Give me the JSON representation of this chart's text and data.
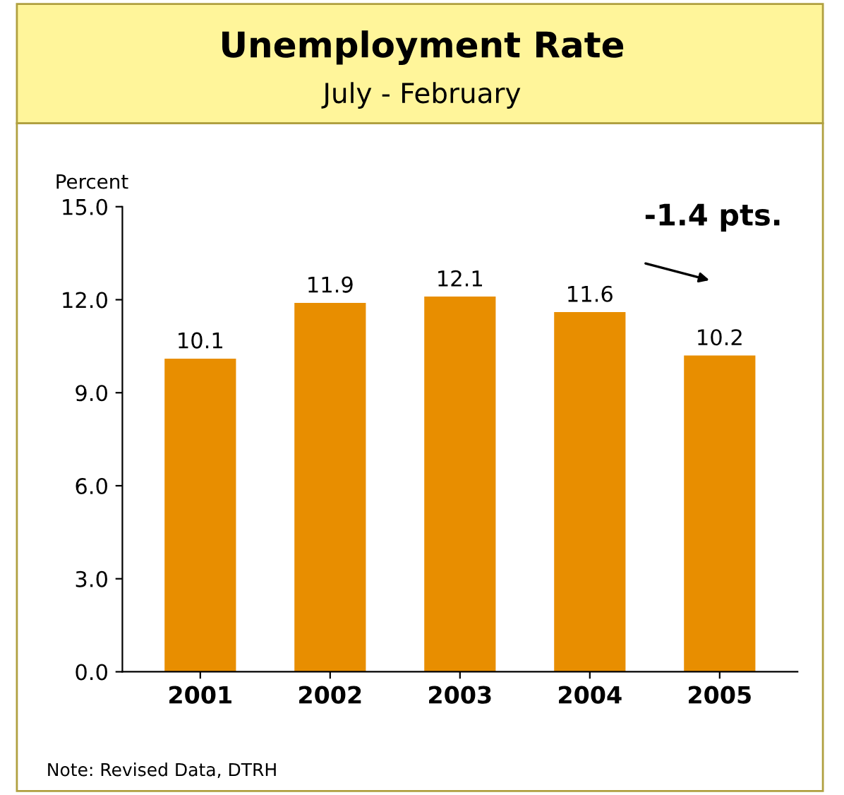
{
  "chart_data": {
    "type": "bar",
    "title": "Unemployment Rate",
    "subtitle": "July - February",
    "ylabel": "Percent",
    "categories": [
      "2001",
      "2002",
      "2003",
      "2004",
      "2005"
    ],
    "values": [
      10.1,
      11.9,
      12.1,
      11.6,
      10.2
    ],
    "color": "#e88e00",
    "ylim": [
      0,
      15
    ],
    "yticks": [
      {
        "value": 0,
        "label": "0.0"
      },
      {
        "value": 3,
        "label": "3.0"
      },
      {
        "value": 6,
        "label": "6.0"
      },
      {
        "value": 9,
        "label": "9.0"
      },
      {
        "value": 12,
        "label": "12.0"
      },
      {
        "value": 15,
        "label": "15.0"
      }
    ],
    "data_labels": true,
    "grid": false,
    "annotations": [
      "-1.4 pts.",
      "Note: Revised Data, DTRH"
    ]
  }
}
